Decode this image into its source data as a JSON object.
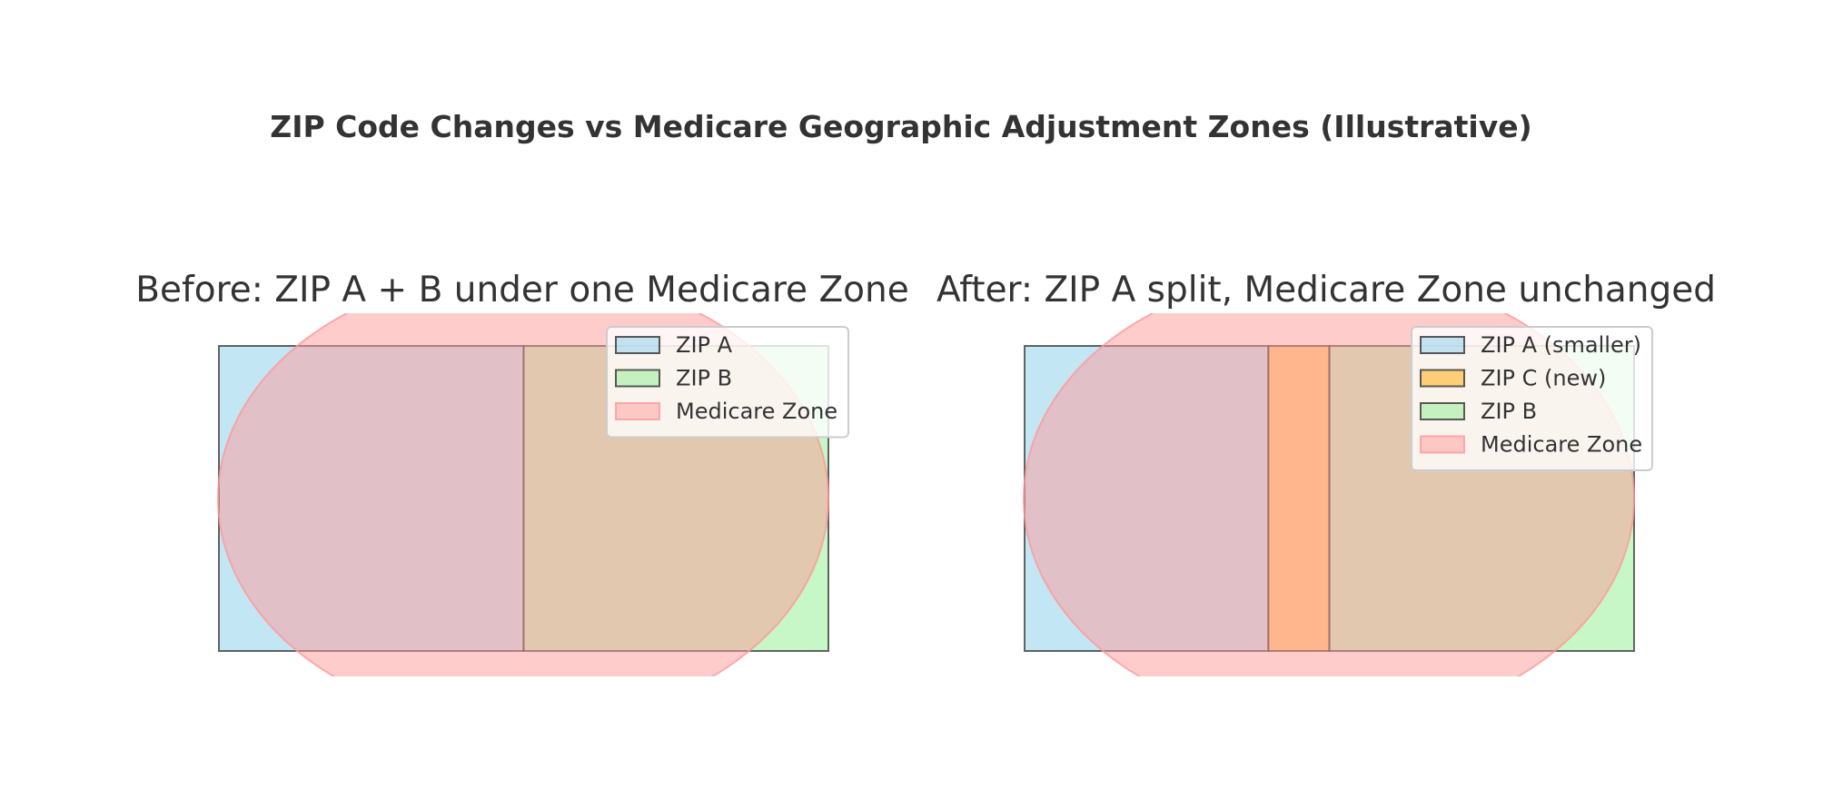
{
  "title": "ZIP Code Changes vs Medicare Geographic Adjustment Zones (Illustrative)",
  "colors": {
    "zip_a": "#87ceeb",
    "zip_b": "#90ee90",
    "zip_c": "#ffa500",
    "medicare_zone": "#ff9999",
    "edge": "#333333",
    "text": "#333333"
  },
  "panels": [
    {
      "title": "Before: ZIP A + B under one Medicare Zone",
      "regions": [
        {
          "key": "zip_a",
          "label": "ZIP A",
          "x0": 0.0,
          "x1": 0.5
        },
        {
          "key": "zip_b",
          "label": "ZIP B",
          "x0": 0.5,
          "x1": 1.0
        }
      ],
      "zone": {
        "label": "Medicare Zone"
      },
      "legend": [
        {
          "key": "zip_a",
          "label": "ZIP A"
        },
        {
          "key": "zip_b",
          "label": "ZIP B"
        },
        {
          "key": "medicare_zone",
          "label": "Medicare Zone"
        }
      ]
    },
    {
      "title": "After: ZIP A split, Medicare Zone unchanged",
      "regions": [
        {
          "key": "zip_a",
          "label": "ZIP A (smaller)",
          "x0": 0.0,
          "x1": 0.4
        },
        {
          "key": "zip_c",
          "label": "ZIP C (new)",
          "x0": 0.4,
          "x1": 0.5
        },
        {
          "key": "zip_b",
          "label": "ZIP B",
          "x0": 0.5,
          "x1": 1.0
        }
      ],
      "zone": {
        "label": "Medicare Zone"
      },
      "legend": [
        {
          "key": "zip_a",
          "label": "ZIP A (smaller)"
        },
        {
          "key": "zip_c",
          "label": "ZIP C (new)"
        },
        {
          "key": "zip_b",
          "label": "ZIP B"
        },
        {
          "key": "medicare_zone",
          "label": "Medicare Zone"
        }
      ]
    }
  ]
}
